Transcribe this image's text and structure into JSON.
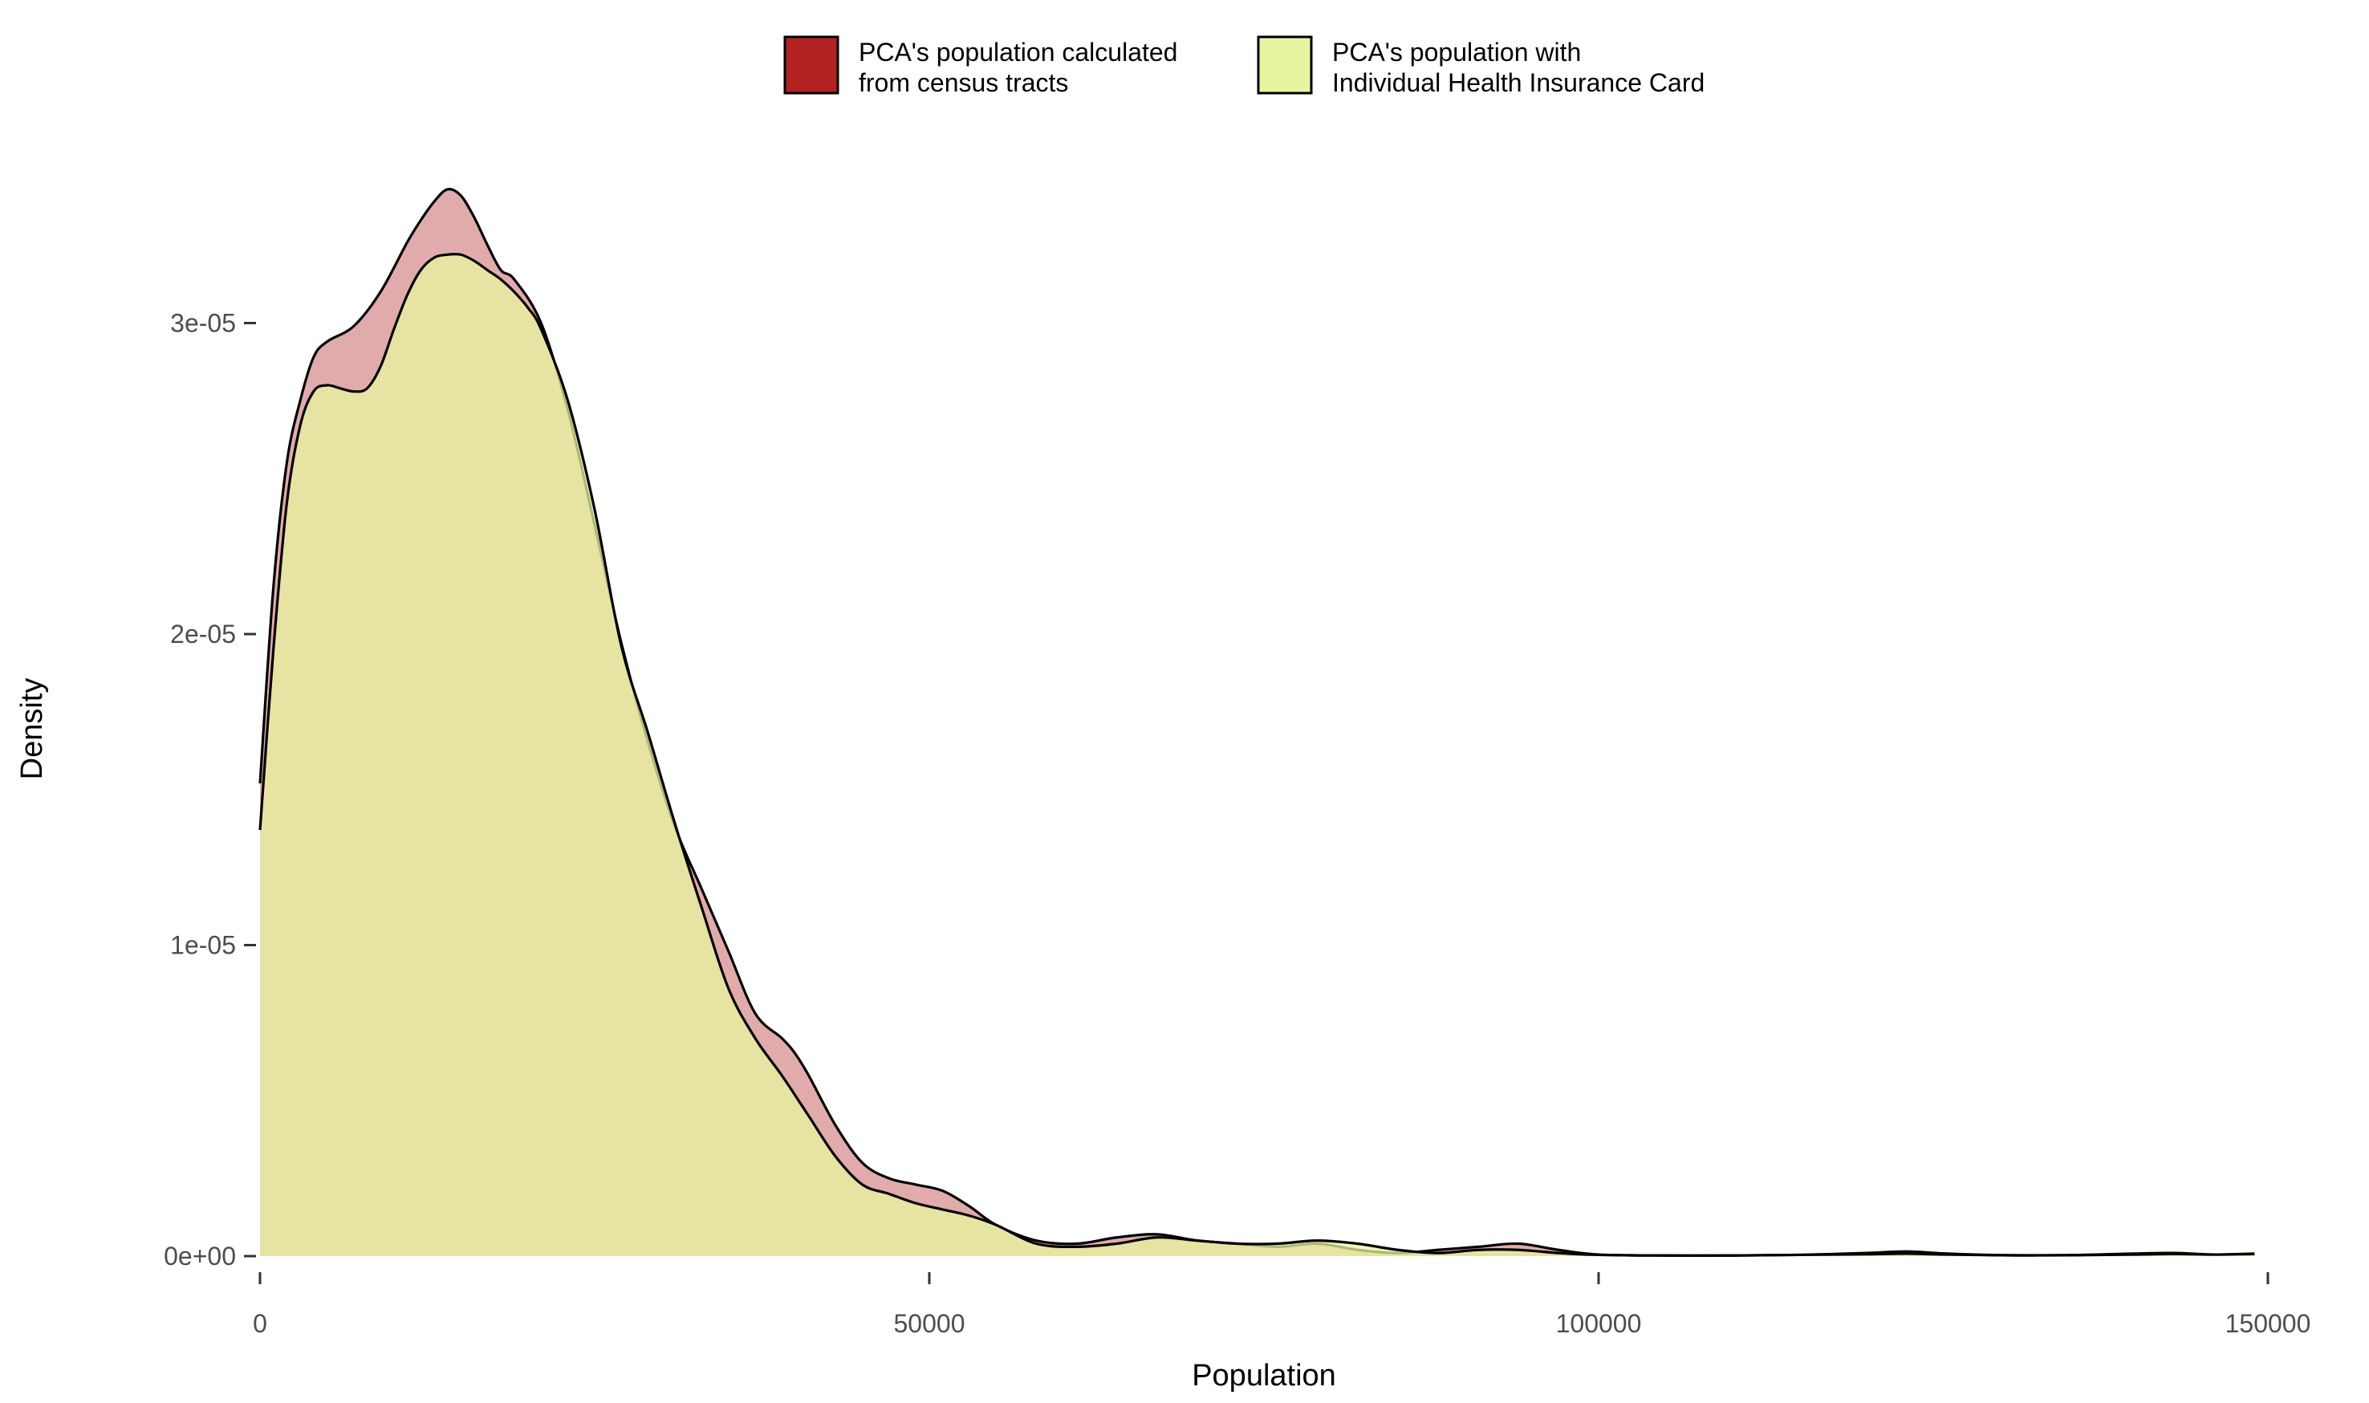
{
  "chart_data": {
    "type": "area",
    "title": "",
    "xlabel": "Population",
    "ylabel": "Density",
    "xlim": [
      0,
      150000
    ],
    "ylim": [
      0,
      3.6e-05
    ],
    "x_ticks": [
      0,
      50000,
      100000,
      150000
    ],
    "x_tick_labels": [
      "0",
      "50000",
      "100000",
      "150000"
    ],
    "y_ticks": [
      0,
      1e-05,
      2e-05,
      3e-05
    ],
    "y_tick_labels": [
      "0e+00",
      "1e-05",
      "2e-05",
      "3e-05"
    ],
    "grid": false,
    "legend_position": "top",
    "series": [
      {
        "name": "PCA's population calculated from census tracts",
        "legend_lines": [
          "PCA's population calculated",
          "from census tracts"
        ],
        "fill": "#b22222",
        "fill_opacity": 0.38,
        "x": [
          0,
          1000,
          2000,
          3000,
          4000,
          5000,
          7000,
          9000,
          11000,
          12000,
          13000,
          14000,
          15000,
          16000,
          17000,
          18000,
          19000,
          21000,
          23000,
          25000,
          27000,
          29000,
          31000,
          33000,
          35000,
          37000,
          39000,
          40000,
          41000,
          43000,
          45000,
          47000,
          49000,
          51000,
          53000,
          55000,
          58000,
          61000,
          64000,
          67000,
          70000,
          73000,
          76000,
          79000,
          82000,
          85000,
          88000,
          91000,
          94000,
          97000,
          100000,
          105000,
          110000,
          115000,
          120000,
          123000,
          126000,
          130000,
          135000,
          140000,
          143000,
          146000,
          149000
        ],
        "y": [
          1.52e-05,
          2.15e-05,
          2.55e-05,
          2.75e-05,
          2.89e-05,
          2.94e-05,
          2.99e-05,
          3.1e-05,
          3.26e-05,
          3.33e-05,
          3.39e-05,
          3.43e-05,
          3.41e-05,
          3.34e-05,
          3.25e-05,
          3.17e-05,
          3.14e-05,
          3e-05,
          2.72e-05,
          2.35e-05,
          1.97e-05,
          1.65e-05,
          1.38e-05,
          1.18e-05,
          9.8e-06,
          7.8e-06,
          7e-06,
          6.5e-06,
          5.8e-06,
          4.2e-06,
          3e-06,
          2.5e-06,
          2.3e-06,
          2.1e-06,
          1.6e-06,
          1e-06,
          5e-07,
          4e-07,
          6e-07,
          7e-07,
          5e-07,
          4e-07,
          3e-07,
          4e-07,
          2e-07,
          1e-07,
          2e-07,
          3e-07,
          4e-07,
          2e-07,
          5e-08,
          2e-08,
          2e-08,
          4e-08,
          1e-07,
          1.5e-07,
          8e-08,
          3e-08,
          3e-08,
          8e-08,
          1e-07,
          5e-08,
          8e-08
        ]
      },
      {
        "name": "PCA's population with Individual Health Insurance Card",
        "legend_lines": [
          "PCA's population with",
          "Individual Health Insurance Card"
        ],
        "fill": "#e8f5a0",
        "fill_opacity": 0.75,
        "x": [
          0,
          1000,
          2000,
          3000,
          4000,
          5000,
          6000,
          7000,
          8000,
          9000,
          10000,
          11000,
          12000,
          13000,
          14000,
          15000,
          16000,
          17000,
          18000,
          19000,
          20000,
          21000,
          23000,
          25000,
          27000,
          29000,
          31000,
          33000,
          35000,
          37000,
          39000,
          41000,
          43000,
          45000,
          47000,
          49000,
          51000,
          53000,
          55000,
          58000,
          61000,
          64000,
          67000,
          70000,
          73000,
          76000,
          79000,
          82000,
          85000,
          88000,
          91000,
          94000,
          97000,
          100000,
          105000,
          110000,
          115000,
          120000,
          123000,
          126000,
          130000,
          135000,
          140000,
          143000,
          146000,
          149000
        ],
        "y": [
          1.37e-05,
          1.95e-05,
          2.42e-05,
          2.67e-05,
          2.78e-05,
          2.8e-05,
          2.79e-05,
          2.78e-05,
          2.79e-05,
          2.86e-05,
          2.98e-05,
          3.09e-05,
          3.17e-05,
          3.21e-05,
          3.22e-05,
          3.22e-05,
          3.2e-05,
          3.17e-05,
          3.14e-05,
          3.1e-05,
          3.05e-05,
          2.98e-05,
          2.75e-05,
          2.4e-05,
          1.96e-05,
          1.68e-05,
          1.39e-05,
          1.12e-05,
          8.6e-06,
          7e-06,
          5.8e-06,
          4.5e-06,
          3.2e-06,
          2.3e-06,
          2e-06,
          1.7e-06,
          1.5e-06,
          1.3e-06,
          1e-06,
          4e-07,
          3e-07,
          4e-07,
          6e-07,
          5e-07,
          4e-07,
          4e-07,
          5e-07,
          4e-07,
          2e-07,
          1e-07,
          2e-07,
          2e-07,
          1e-07,
          4e-08,
          2e-08,
          2e-08,
          4e-08,
          6e-08,
          8e-08,
          5e-08,
          3e-08,
          3e-08,
          5e-08,
          7e-08,
          5e-08,
          7e-08
        ]
      }
    ]
  }
}
